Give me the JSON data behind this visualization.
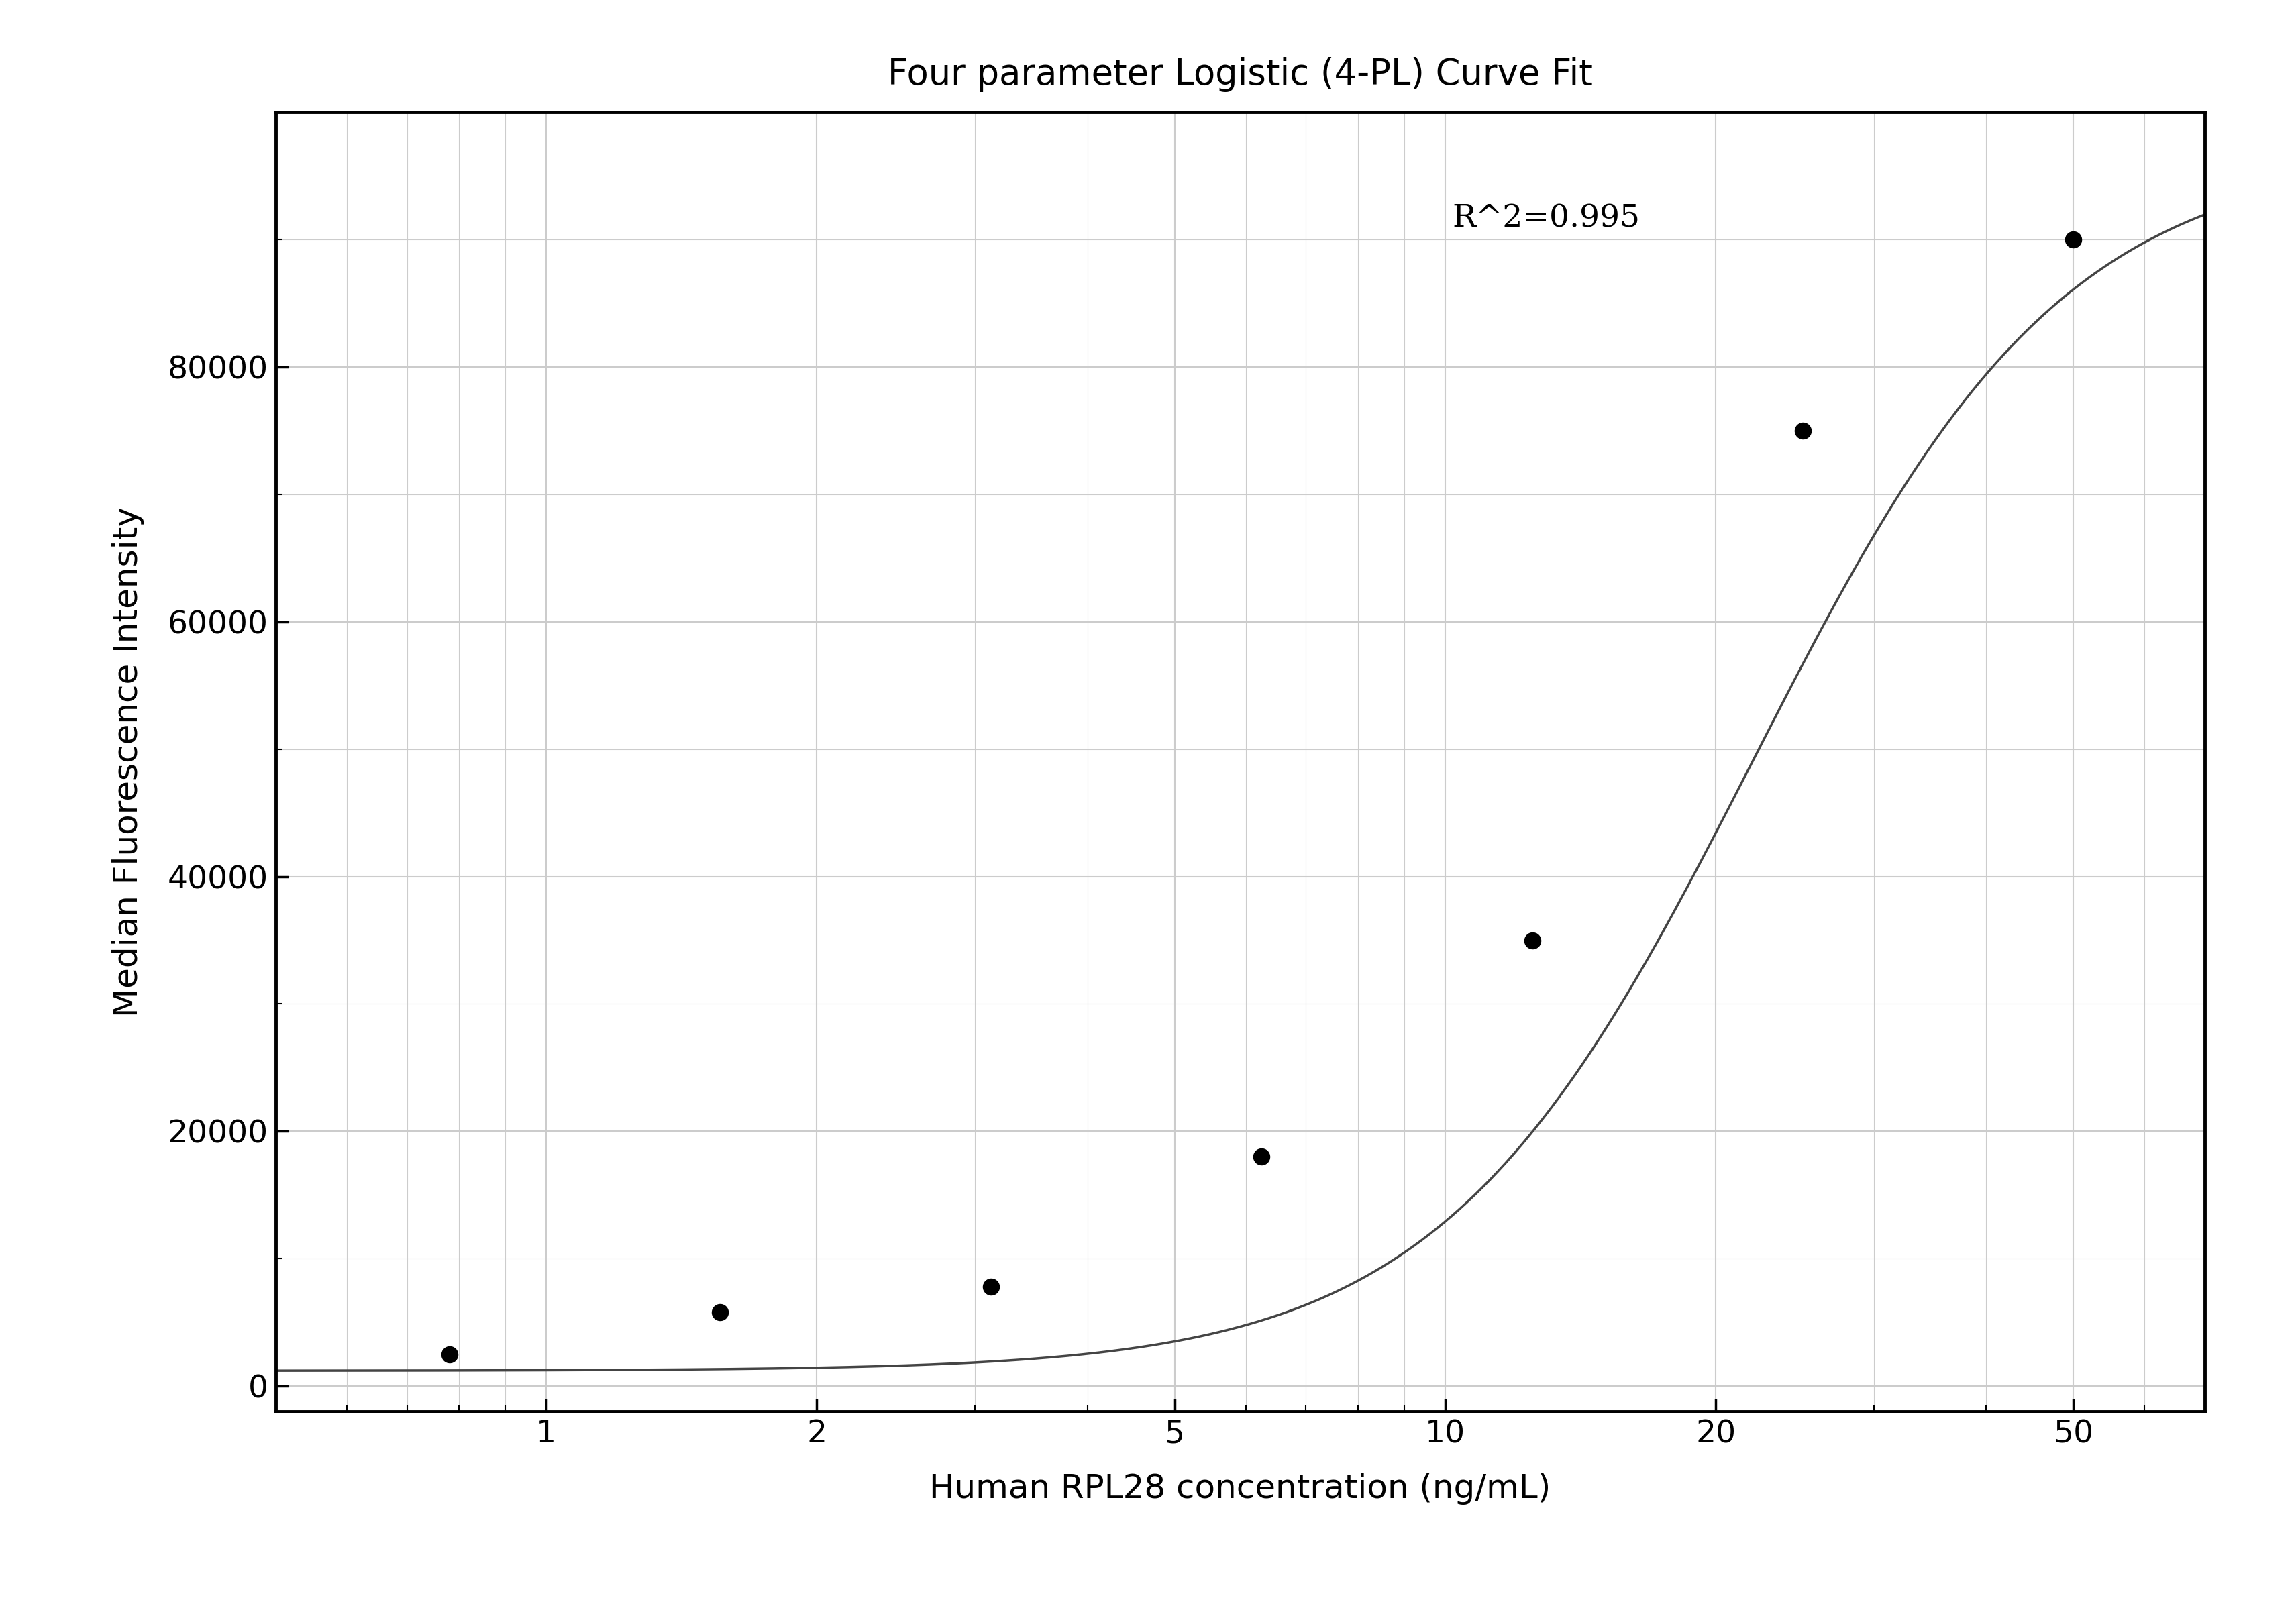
{
  "title": "Four parameter Logistic (4-PL) Curve Fit",
  "xlabel": "Human RPL28 concentration (ng/mL)",
  "ylabel": "Median Fluorescence Intensity",
  "r_squared": "R^2=0.995",
  "scatter_x": [
    0.78,
    1.56,
    3.125,
    6.25,
    12.5,
    25,
    50
  ],
  "scatter_y": [
    2500,
    5800,
    7800,
    18000,
    35000,
    75000,
    90000
  ],
  "xscale": "log",
  "xlim": [
    0.5,
    70
  ],
  "ylim": [
    -2000,
    100000
  ],
  "yticks": [
    0,
    20000,
    40000,
    60000,
    80000
  ],
  "xticks": [
    1,
    2,
    5,
    10,
    20,
    50
  ],
  "curve_color": "#444444",
  "scatter_color": "#000000",
  "grid_color": "#cccccc",
  "background_color": "#ffffff",
  "4pl_A": 1200,
  "4pl_B": 2.5,
  "4pl_C": 22.0,
  "4pl_D": 97000,
  "title_fontsize": 38,
  "label_fontsize": 36,
  "tick_fontsize": 34,
  "annotation_fontsize": 34,
  "scatter_size": 300,
  "linewidth": 2.5,
  "spine_linewidth": 3.5
}
